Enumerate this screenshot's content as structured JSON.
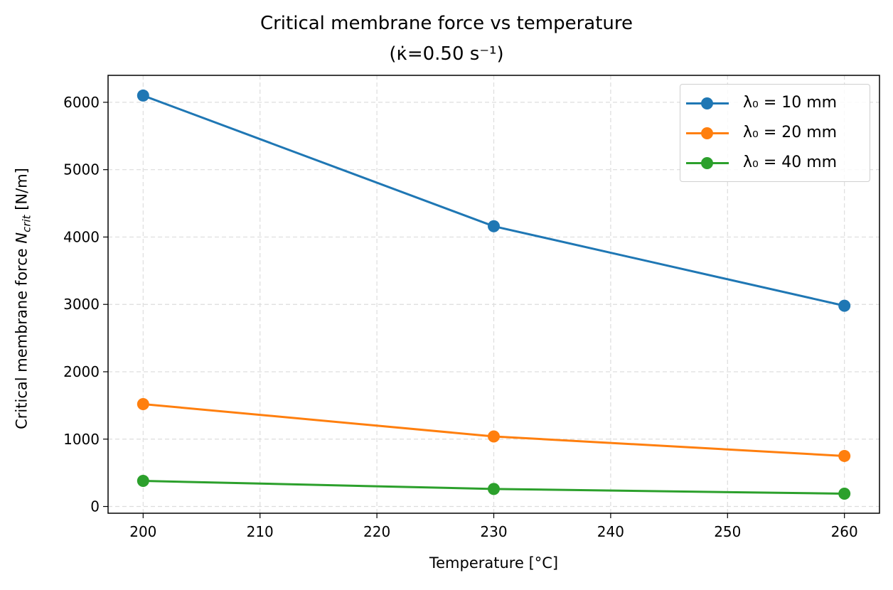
{
  "chart_data": {
    "type": "line",
    "title": "Critical membrane force vs temperature",
    "subtitle": "(κ̇=0.50 s⁻¹)",
    "xlabel": "Temperature [°C]",
    "ylabel": "Critical membrane force N_crit [N/m]",
    "ylabel_parts": {
      "pre": "Critical membrane force ",
      "var": "N",
      "sub": "crit",
      "post": " [N/m]"
    },
    "xlim": [
      197,
      263
    ],
    "ylim": [
      -100,
      6400
    ],
    "xticks": [
      200,
      210,
      220,
      230,
      240,
      250,
      260
    ],
    "yticks": [
      0,
      1000,
      2000,
      3000,
      4000,
      5000,
      6000
    ],
    "grid": true,
    "legend_position": "top-right",
    "x": [
      200,
      230,
      260
    ],
    "series": [
      {
        "name": "λ₀ = 10 mm",
        "values": [
          6100,
          4160,
          2980
        ],
        "color": "#1f77b4"
      },
      {
        "name": "λ₀ = 20 mm",
        "values": [
          1520,
          1040,
          750
        ],
        "color": "#ff7f0e"
      },
      {
        "name": "λ₀ = 40 mm",
        "values": [
          380,
          260,
          190
        ],
        "color": "#2ca02c"
      }
    ]
  }
}
